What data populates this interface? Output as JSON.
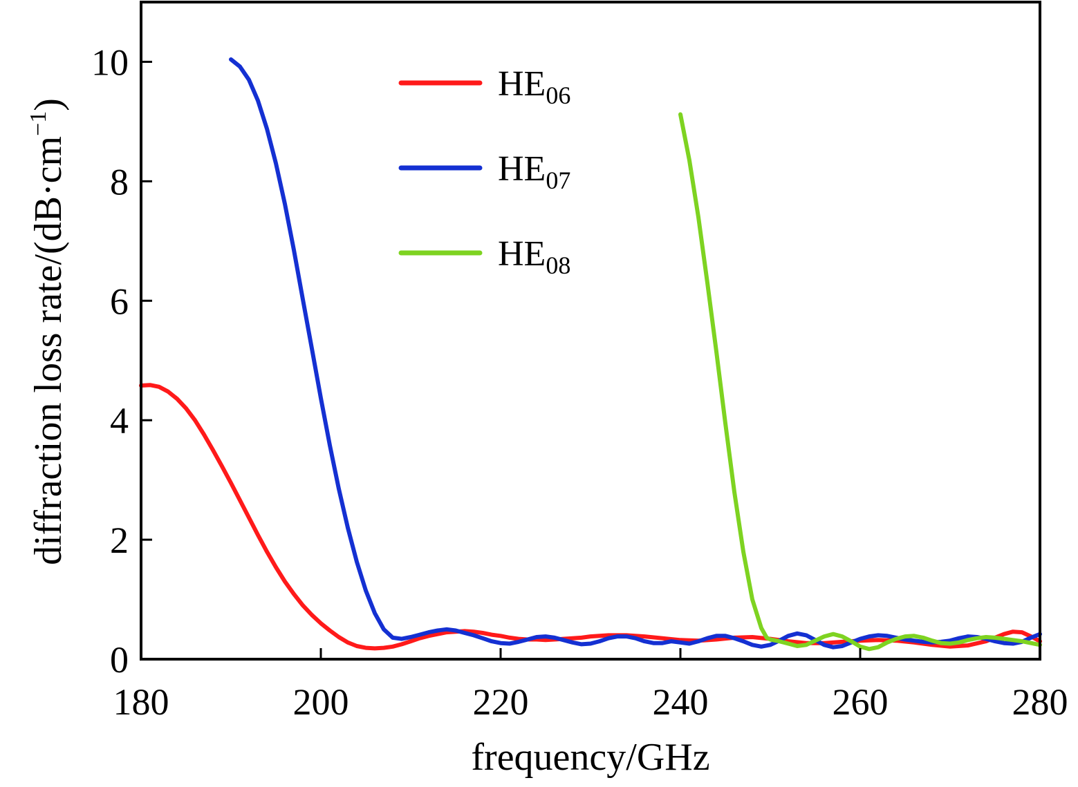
{
  "chart_data": {
    "type": "line",
    "xlabel": "frequency/GHz",
    "ylabel": "diffraction loss rate/(dB·cm⁻¹)",
    "ylabel_parts": {
      "main": "diffraction loss rate/(dB·cm",
      "sup": "−1",
      "tail": ")"
    },
    "xlim": [
      180,
      280
    ],
    "ylim": [
      0,
      11
    ],
    "xticks": [
      180,
      200,
      220,
      240,
      260,
      280
    ],
    "yticks": [
      0,
      2,
      4,
      6,
      8,
      10
    ],
    "grid": false,
    "legend_position": "top-center",
    "series": [
      {
        "name": "HE06",
        "label_main": "HE",
        "label_sub": "06",
        "color": "#ff1a1a",
        "points": [
          [
            180,
            4.58
          ],
          [
            181,
            4.59
          ],
          [
            182,
            4.56
          ],
          [
            183,
            4.48
          ],
          [
            184,
            4.36
          ],
          [
            185,
            4.2
          ],
          [
            186,
            4.0
          ],
          [
            187,
            3.76
          ],
          [
            188,
            3.5
          ],
          [
            189,
            3.23
          ],
          [
            190,
            2.95
          ],
          [
            191,
            2.66
          ],
          [
            192,
            2.37
          ],
          [
            193,
            2.08
          ],
          [
            194,
            1.8
          ],
          [
            195,
            1.54
          ],
          [
            196,
            1.3
          ],
          [
            197,
            1.09
          ],
          [
            198,
            0.9
          ],
          [
            199,
            0.74
          ],
          [
            200,
            0.6
          ],
          [
            201,
            0.48
          ],
          [
            202,
            0.37
          ],
          [
            203,
            0.28
          ],
          [
            204,
            0.22
          ],
          [
            205,
            0.19
          ],
          [
            206,
            0.18
          ],
          [
            207,
            0.19
          ],
          [
            208,
            0.21
          ],
          [
            209,
            0.25
          ],
          [
            210,
            0.3
          ],
          [
            211,
            0.35
          ],
          [
            212,
            0.39
          ],
          [
            213,
            0.42
          ],
          [
            214,
            0.45
          ],
          [
            215,
            0.46
          ],
          [
            216,
            0.47
          ],
          [
            217,
            0.46
          ],
          [
            218,
            0.44
          ],
          [
            219,
            0.41
          ],
          [
            220,
            0.39
          ],
          [
            221,
            0.36
          ],
          [
            222,
            0.34
          ],
          [
            223,
            0.33
          ],
          [
            224,
            0.33
          ],
          [
            225,
            0.32
          ],
          [
            226,
            0.33
          ],
          [
            227,
            0.34
          ],
          [
            228,
            0.35
          ],
          [
            229,
            0.36
          ],
          [
            230,
            0.38
          ],
          [
            232,
            0.4
          ],
          [
            234,
            0.4
          ],
          [
            236,
            0.38
          ],
          [
            238,
            0.35
          ],
          [
            240,
            0.32
          ],
          [
            242,
            0.31
          ],
          [
            244,
            0.33
          ],
          [
            246,
            0.36
          ],
          [
            248,
            0.37
          ],
          [
            250,
            0.34
          ],
          [
            252,
            0.3
          ],
          [
            254,
            0.27
          ],
          [
            256,
            0.27
          ],
          [
            258,
            0.29
          ],
          [
            260,
            0.31
          ],
          [
            262,
            0.32
          ],
          [
            264,
            0.31
          ],
          [
            266,
            0.28
          ],
          [
            268,
            0.24
          ],
          [
            270,
            0.21
          ],
          [
            272,
            0.23
          ],
          [
            274,
            0.3
          ],
          [
            276,
            0.42
          ],
          [
            277,
            0.46
          ],
          [
            278,
            0.45
          ],
          [
            279,
            0.38
          ],
          [
            280,
            0.3
          ]
        ]
      },
      {
        "name": "HE07",
        "label_main": "HE",
        "label_sub": "07",
        "color": "#1430d2",
        "points": [
          [
            190,
            10.04
          ],
          [
            191,
            9.92
          ],
          [
            192,
            9.7
          ],
          [
            193,
            9.35
          ],
          [
            194,
            8.88
          ],
          [
            195,
            8.3
          ],
          [
            196,
            7.62
          ],
          [
            197,
            6.85
          ],
          [
            198,
            6.02
          ],
          [
            199,
            5.2
          ],
          [
            200,
            4.37
          ],
          [
            201,
            3.58
          ],
          [
            202,
            2.85
          ],
          [
            203,
            2.2
          ],
          [
            204,
            1.63
          ],
          [
            205,
            1.15
          ],
          [
            206,
            0.77
          ],
          [
            207,
            0.5
          ],
          [
            208,
            0.36
          ],
          [
            209,
            0.34
          ],
          [
            210,
            0.37
          ],
          [
            211,
            0.41
          ],
          [
            212,
            0.45
          ],
          [
            213,
            0.48
          ],
          [
            214,
            0.5
          ],
          [
            215,
            0.48
          ],
          [
            216,
            0.44
          ],
          [
            217,
            0.4
          ],
          [
            218,
            0.35
          ],
          [
            219,
            0.3
          ],
          [
            220,
            0.27
          ],
          [
            221,
            0.26
          ],
          [
            222,
            0.29
          ],
          [
            223,
            0.33
          ],
          [
            224,
            0.37
          ],
          [
            225,
            0.38
          ],
          [
            226,
            0.36
          ],
          [
            227,
            0.32
          ],
          [
            228,
            0.28
          ],
          [
            229,
            0.25
          ],
          [
            230,
            0.26
          ],
          [
            231,
            0.3
          ],
          [
            232,
            0.35
          ],
          [
            233,
            0.38
          ],
          [
            234,
            0.38
          ],
          [
            235,
            0.35
          ],
          [
            236,
            0.3
          ],
          [
            237,
            0.27
          ],
          [
            238,
            0.27
          ],
          [
            239,
            0.3
          ],
          [
            240,
            0.28
          ],
          [
            241,
            0.26
          ],
          [
            242,
            0.3
          ],
          [
            243,
            0.35
          ],
          [
            244,
            0.39
          ],
          [
            245,
            0.39
          ],
          [
            246,
            0.35
          ],
          [
            247,
            0.3
          ],
          [
            248,
            0.24
          ],
          [
            249,
            0.21
          ],
          [
            250,
            0.24
          ],
          [
            251,
            0.31
          ],
          [
            252,
            0.39
          ],
          [
            253,
            0.43
          ],
          [
            254,
            0.4
          ],
          [
            255,
            0.32
          ],
          [
            256,
            0.24
          ],
          [
            257,
            0.2
          ],
          [
            258,
            0.22
          ],
          [
            259,
            0.28
          ],
          [
            260,
            0.34
          ],
          [
            261,
            0.38
          ],
          [
            262,
            0.4
          ],
          [
            263,
            0.39
          ],
          [
            264,
            0.36
          ],
          [
            265,
            0.33
          ],
          [
            266,
            0.31
          ],
          [
            267,
            0.29
          ],
          [
            268,
            0.28
          ],
          [
            269,
            0.29
          ],
          [
            270,
            0.31
          ],
          [
            271,
            0.35
          ],
          [
            272,
            0.38
          ],
          [
            273,
            0.37
          ],
          [
            274,
            0.34
          ],
          [
            275,
            0.3
          ],
          [
            276,
            0.27
          ],
          [
            277,
            0.26
          ],
          [
            278,
            0.29
          ],
          [
            279,
            0.36
          ],
          [
            280,
            0.42
          ]
        ]
      },
      {
        "name": "HE08",
        "label_main": "HE",
        "label_sub": "08",
        "color": "#7ed321",
        "points": [
          [
            240,
            9.12
          ],
          [
            241,
            8.35
          ],
          [
            242,
            7.4
          ],
          [
            243,
            6.3
          ],
          [
            244,
            5.15
          ],
          [
            245,
            3.95
          ],
          [
            246,
            2.8
          ],
          [
            247,
            1.8
          ],
          [
            248,
            1.0
          ],
          [
            249,
            0.52
          ],
          [
            249.6,
            0.36
          ],
          [
            250,
            0.33
          ],
          [
            251,
            0.3
          ],
          [
            252,
            0.26
          ],
          [
            253,
            0.22
          ],
          [
            254,
            0.24
          ],
          [
            255,
            0.31
          ],
          [
            256,
            0.38
          ],
          [
            257,
            0.42
          ],
          [
            258,
            0.38
          ],
          [
            259,
            0.3
          ],
          [
            260,
            0.21
          ],
          [
            261,
            0.17
          ],
          [
            262,
            0.2
          ],
          [
            263,
            0.28
          ],
          [
            264,
            0.34
          ],
          [
            265,
            0.38
          ],
          [
            266,
            0.39
          ],
          [
            267,
            0.36
          ],
          [
            268,
            0.31
          ],
          [
            269,
            0.27
          ],
          [
            270,
            0.26
          ],
          [
            271,
            0.28
          ],
          [
            272,
            0.32
          ],
          [
            273,
            0.35
          ],
          [
            274,
            0.37
          ],
          [
            275,
            0.36
          ],
          [
            276,
            0.34
          ],
          [
            277,
            0.32
          ],
          [
            278,
            0.3
          ],
          [
            279,
            0.27
          ],
          [
            280,
            0.24
          ]
        ]
      }
    ]
  }
}
